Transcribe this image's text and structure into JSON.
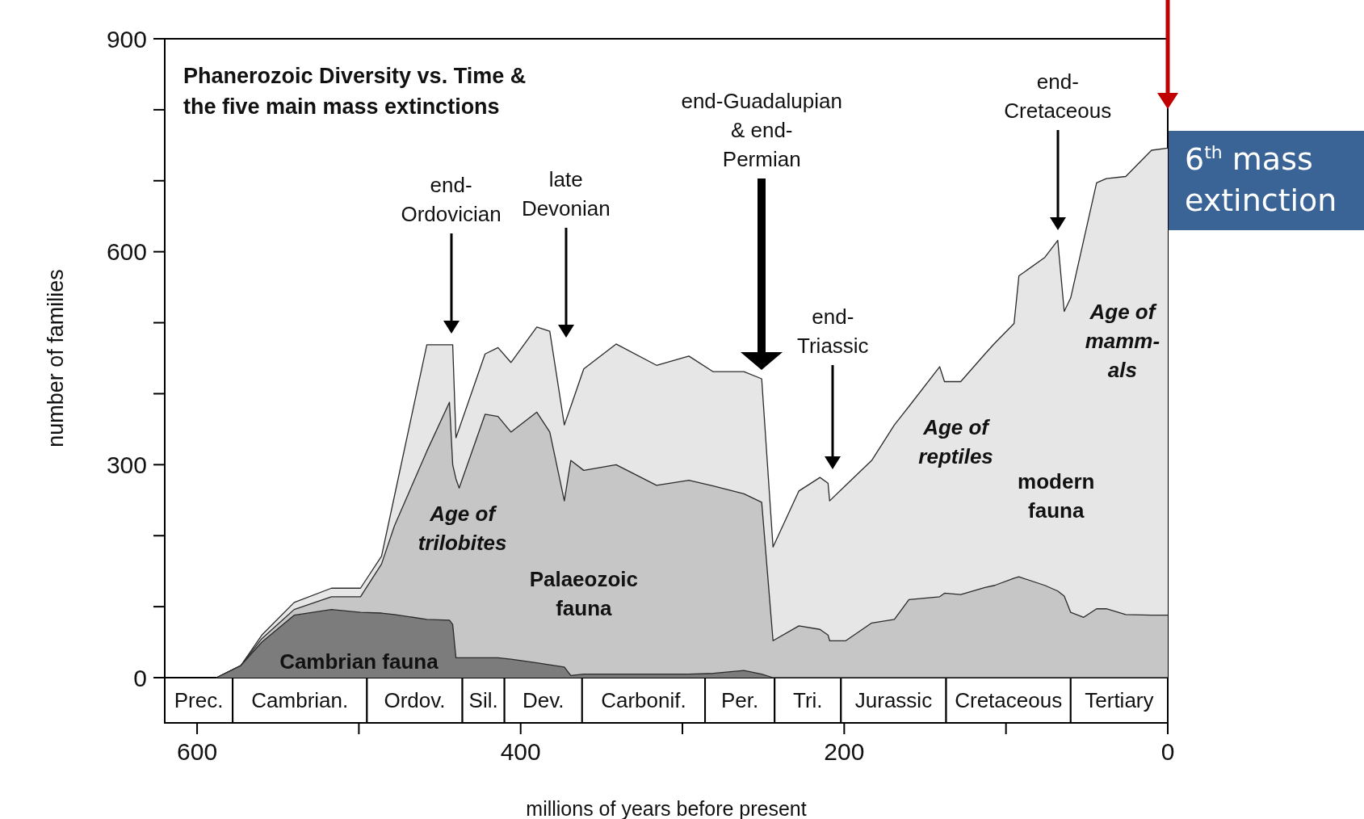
{
  "chart_data": {
    "type": "area",
    "stacked": true,
    "title": "Phanerozoic Diversity vs. Time &\nthe five main mass extinctions",
    "xlabel": "millions of years before present",
    "ylabel": "number of families",
    "xlim": [
      620,
      0
    ],
    "xticks": [
      600,
      {
        "value": 500,
        "label": null
      },
      400,
      {
        "value": 300,
        "label": null
      },
      200,
      {
        "value": 100,
        "label": null
      },
      0
    ],
    "ylim": [
      0,
      900
    ],
    "yticks": [
      0,
      {
        "value": 100,
        "label": null
      },
      {
        "value": 200,
        "label": null
      },
      300,
      {
        "value": 400,
        "label": null
      },
      {
        "value": 500,
        "label": null
      },
      600,
      {
        "value": 700,
        "label": null
      },
      {
        "value": 800,
        "label": null
      },
      900
    ],
    "x": [
      588,
      573,
      560,
      540,
      517,
      499,
      486,
      478,
      458,
      444,
      442,
      440,
      438,
      422,
      414,
      406,
      390,
      382,
      373,
      369,
      361,
      341,
      316,
      296,
      281,
      262,
      251,
      244,
      228,
      215,
      210,
      209,
      199,
      183,
      169,
      160,
      141,
      138,
      128,
      113,
      107,
      95,
      92,
      76,
      68,
      64,
      60,
      52,
      44,
      38,
      26,
      10,
      0
    ],
    "series": [
      {
        "name": "Cambrian fauna",
        "color": "#7c7c7c",
        "values": [
          0,
          17,
          50,
          88,
          96,
          92,
          91,
          89,
          82,
          81,
          75,
          28,
          28,
          28,
          28,
          26,
          21,
          18,
          15,
          3,
          5,
          5,
          5,
          5,
          6,
          10,
          5,
          0,
          0,
          0,
          0,
          0,
          0,
          0,
          0,
          0,
          0,
          0,
          0,
          0,
          0,
          0,
          0,
          0,
          0,
          0,
          0,
          0,
          0,
          0,
          0,
          0,
          0
        ]
      },
      {
        "name": "Palaeozoic fauna",
        "color": "#c6c6c6",
        "values": [
          0,
          0,
          5,
          8,
          18,
          22,
          69,
          125,
          237,
          307,
          225,
          252,
          239,
          343,
          340,
          320,
          353,
          328,
          234,
          303,
          287,
          295,
          266,
          273,
          264,
          249,
          242,
          52,
          73,
          68,
          60,
          52,
          52,
          77,
          82,
          110,
          114,
          119,
          117,
          127,
          130,
          140,
          142,
          130,
          122,
          115,
          92,
          85,
          97,
          97,
          89,
          88,
          88
        ]
      },
      {
        "name": "modern fauna",
        "color": "#e6e6e6",
        "values": [
          0,
          0,
          5,
          10,
          12,
          12,
          11,
          42,
          150,
          81,
          169,
          58,
          84,
          85,
          97,
          98,
          120,
          142,
          107,
          76,
          143,
          170,
          169,
          175,
          161,
          172,
          174,
          132,
          190,
          214,
          214,
          197,
          219,
          229,
          274,
          272,
          324,
          298,
          300,
          329,
          341,
          359,
          424,
          462,
          494,
          401,
          443,
          531,
          600,
          606,
          617,
          655,
          658
        ]
      }
    ],
    "annotations": [
      "end-\nOrdovician",
      "late\nDevonian",
      "end-Guadalupian\n& end-\nPermian",
      "end-\nTriassic",
      "end-\nCretaceous",
      "6$^{th}$ mass\nextinction",
      "Age of\ntrilobites",
      "Age of\nreptiles",
      "Age of\nmamm-\nals",
      "Prec.",
      "Cambrian.",
      "Ordov.",
      "Sil.",
      "Dev.",
      "Carbonif.",
      "Per.",
      "Tri.",
      "Jurassic",
      "Cretaceous",
      "Tertiary"
    ]
  }
}
